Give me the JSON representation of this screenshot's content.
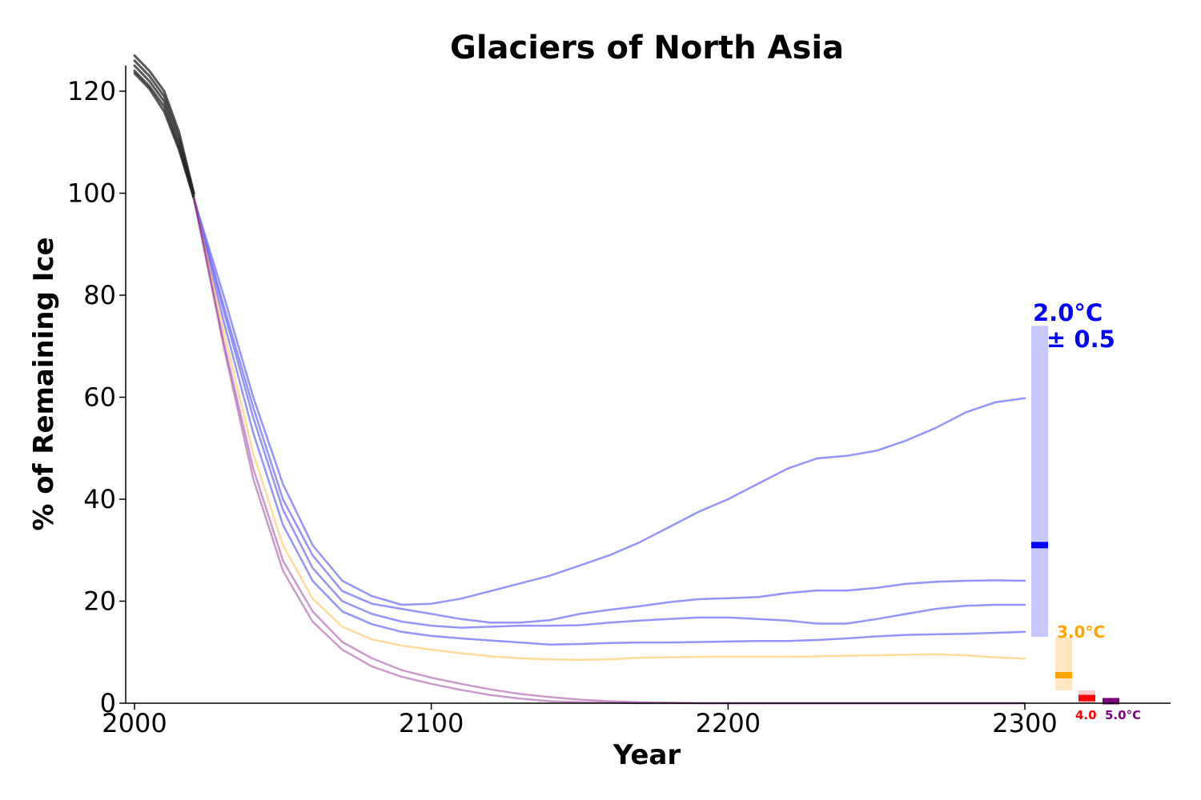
{
  "chart_data": {
    "type": "line",
    "title": "Glaciers of North Asia",
    "xlabel": "Year",
    "ylabel": "% of Remaining Ice",
    "xlim": [
      1997,
      2350
    ],
    "ylim": [
      0,
      125
    ],
    "xticks": [
      2000,
      2100,
      2200,
      2300
    ],
    "yticks": [
      0,
      20,
      40,
      60,
      80,
      100,
      120
    ],
    "grid": false,
    "legend": "none",
    "colors": {
      "historical": "#222222",
      "2.0": "#6666ff",
      "3.0": "#ffa500",
      "4.0": "#ff0000",
      "5.0": "#800080"
    },
    "series": [
      {
        "group": "historical",
        "x": [
          2000,
          2005,
          2010,
          2015,
          2020
        ],
        "y": [
          126,
          123,
          119,
          111,
          100
        ]
      },
      {
        "group": "historical",
        "x": [
          2000,
          2005,
          2010,
          2015,
          2020
        ],
        "y": [
          125,
          122,
          118,
          110,
          99.5
        ]
      },
      {
        "group": "historical",
        "x": [
          2000,
          2005,
          2010,
          2015,
          2020
        ],
        "y": [
          124,
          121,
          117,
          109,
          99
        ]
      },
      {
        "group": "historical",
        "x": [
          2000,
          2005,
          2010,
          2015,
          2020
        ],
        "y": [
          123.5,
          120.5,
          116,
          108.5,
          99
        ]
      },
      {
        "group": "historical",
        "x": [
          2000,
          2005,
          2010,
          2015,
          2020
        ],
        "y": [
          127,
          124,
          120,
          112,
          100
        ]
      },
      {
        "group": "2.0",
        "x": [
          2020,
          2030,
          2040,
          2050,
          2060,
          2070,
          2080,
          2090,
          2100,
          2110,
          2120,
          2130,
          2140,
          2150,
          2160,
          2170,
          2180,
          2190,
          2200,
          2210,
          2220,
          2230,
          2240,
          2250,
          2260,
          2270,
          2280,
          2290,
          2300
        ],
        "y": [
          99,
          80,
          60,
          43,
          31,
          24,
          21,
          19.3,
          19.5,
          20.5,
          22,
          23.5,
          25,
          27,
          29,
          31.5,
          34.5,
          37.5,
          40,
          43,
          46,
          48,
          48.5,
          49.5,
          51.5,
          54,
          57,
          59,
          59.8
        ]
      },
      {
        "group": "2.0",
        "x": [
          2020,
          2030,
          2040,
          2050,
          2060,
          2070,
          2080,
          2090,
          2100,
          2110,
          2120,
          2130,
          2140,
          2150,
          2160,
          2170,
          2180,
          2190,
          2200,
          2210,
          2220,
          2230,
          2240,
          2250,
          2260,
          2270,
          2280,
          2290,
          2300
        ],
        "y": [
          99,
          78,
          58,
          40,
          29,
          22,
          19.5,
          18.5,
          17.5,
          16.5,
          15.8,
          15.8,
          16.3,
          17.5,
          18.3,
          19,
          19.8,
          20.4,
          20.6,
          20.8,
          21.6,
          22.1,
          22.1,
          22.6,
          23.4,
          23.8,
          24,
          24.1,
          24
        ]
      },
      {
        "group": "2.0",
        "x": [
          2020,
          2030,
          2040,
          2050,
          2060,
          2070,
          2080,
          2090,
          2100,
          2110,
          2120,
          2130,
          2140,
          2150,
          2160,
          2170,
          2180,
          2190,
          2200,
          2210,
          2220,
          2230,
          2240,
          2250,
          2260,
          2270,
          2280,
          2290,
          2300
        ],
        "y": [
          99,
          77,
          56,
          38,
          26.5,
          20,
          17.5,
          16,
          15.2,
          14.8,
          15,
          15.2,
          15.2,
          15.3,
          15.8,
          16.2,
          16.5,
          16.8,
          16.8,
          16.5,
          16.2,
          15.6,
          15.6,
          16.5,
          17.5,
          18.5,
          19.1,
          19.3,
          19.3
        ]
      },
      {
        "group": "2.0",
        "x": [
          2020,
          2030,
          2040,
          2050,
          2060,
          2070,
          2080,
          2090,
          2100,
          2110,
          2120,
          2130,
          2140,
          2150,
          2160,
          2170,
          2180,
          2190,
          2200,
          2210,
          2220,
          2230,
          2240,
          2250,
          2260,
          2270,
          2280,
          2290,
          2300
        ],
        "y": [
          99,
          75,
          53,
          35,
          24,
          18,
          15.5,
          14,
          13.2,
          12.7,
          12.3,
          11.9,
          11.5,
          11.6,
          11.8,
          11.9,
          11.9,
          12,
          12.1,
          12.2,
          12.2,
          12.4,
          12.7,
          13.1,
          13.4,
          13.5,
          13.6,
          13.8,
          14
        ]
      },
      {
        "group": "3.0",
        "x": [
          2020,
          2030,
          2040,
          2050,
          2060,
          2070,
          2080,
          2090,
          2100,
          2110,
          2120,
          2130,
          2140,
          2150,
          2160,
          2170,
          2180,
          2190,
          2200,
          2210,
          2220,
          2230,
          2240,
          2250,
          2260,
          2270,
          2280,
          2290,
          2300
        ],
        "y": [
          99,
          73,
          49,
          31,
          20.5,
          15,
          12.5,
          11.3,
          10.5,
          9.8,
          9.2,
          8.8,
          8.6,
          8.5,
          8.6,
          8.9,
          9,
          9.1,
          9.1,
          9.1,
          9.1,
          9.2,
          9.3,
          9.4,
          9.5,
          9.6,
          9.4,
          9,
          8.7
        ]
      },
      {
        "group": "5.0",
        "x": [
          2020,
          2030,
          2040,
          2050,
          2060,
          2070,
          2080,
          2090,
          2100,
          2110,
          2120,
          2130,
          2140,
          2150,
          2160,
          2170,
          2180,
          2190,
          2200,
          2220,
          2250,
          2300
        ],
        "y": [
          99,
          71,
          46,
          28,
          18,
          12,
          8.8,
          6.5,
          5,
          3.8,
          2.7,
          1.8,
          1.2,
          0.7,
          0.4,
          0.2,
          0.1,
          0,
          0,
          0,
          0,
          0
        ]
      },
      {
        "group": "5.0",
        "x": [
          2020,
          2030,
          2040,
          2050,
          2060,
          2070,
          2080,
          2090,
          2100,
          2110,
          2120,
          2130,
          2140,
          2150,
          2160,
          2170,
          2180,
          2190,
          2200,
          2220,
          2250,
          2300
        ],
        "y": [
          99,
          70,
          44,
          26,
          16,
          10.5,
          7.2,
          5.2,
          3.8,
          2.6,
          1.6,
          0.9,
          0.4,
          0.2,
          0.1,
          0,
          0,
          0,
          0,
          0,
          0,
          0
        ]
      }
    ],
    "ranges_2300": [
      {
        "group": "2.0",
        "low": 13,
        "high": 74,
        "median": 31,
        "label_line1": "2.0°C",
        "label_line2": "± 0.5"
      },
      {
        "group": "3.0",
        "low": 2.5,
        "high": 13,
        "median": 5.5,
        "label": "3.0°C"
      },
      {
        "group": "4.0",
        "low": 0,
        "high": 2.5,
        "median": 1,
        "label": "4.0"
      },
      {
        "group": "5.0",
        "low": 0,
        "high": 0.8,
        "median": 0.4,
        "label": "5.0°C"
      }
    ]
  }
}
